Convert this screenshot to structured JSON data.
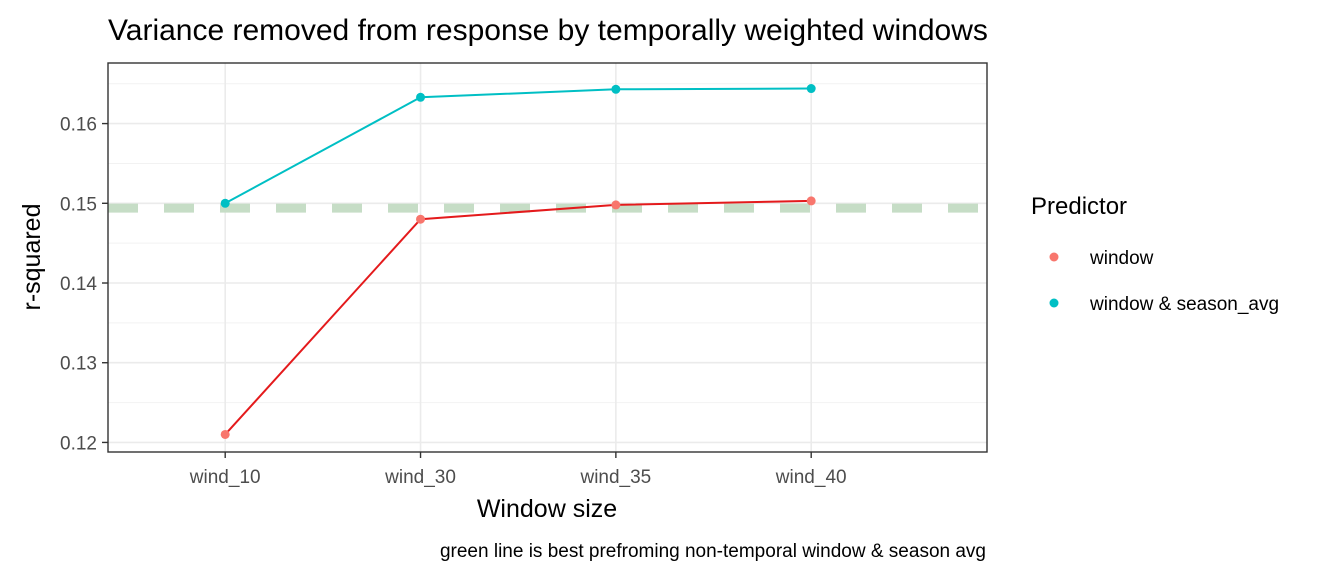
{
  "chart_data": {
    "type": "line",
    "title": "Variance removed from response by temporally weighted windows",
    "xlabel": "Window size",
    "ylabel": "r-squared",
    "caption": "green line is best prefroming non-temporal window & season avg",
    "categories": [
      "wind_10",
      "wind_30",
      "wind_35",
      "wind_40"
    ],
    "y_ticks": [
      0.12,
      0.13,
      0.14,
      0.15,
      0.16
    ],
    "y_tick_labels": [
      "0.12",
      "0.13",
      "0.14",
      "0.15",
      "0.16"
    ],
    "ylim": [
      0.1188,
      0.1676
    ],
    "grid": true,
    "legend": {
      "title": "Predictor",
      "position": "right"
    },
    "series": [
      {
        "name": "window",
        "values": [
          0.121,
          0.148,
          0.1498,
          0.1503
        ],
        "point_color": "#f8766d",
        "line_color": "#e41a1c"
      },
      {
        "name": "window & season_avg",
        "values": [
          0.15,
          0.1633,
          0.1643,
          0.1644
        ],
        "point_color": "#00bfc4",
        "line_color": "#00bfc4"
      }
    ],
    "reference_line": {
      "value": 0.1494,
      "color": "#c6ddc6",
      "style": "dashed"
    }
  }
}
